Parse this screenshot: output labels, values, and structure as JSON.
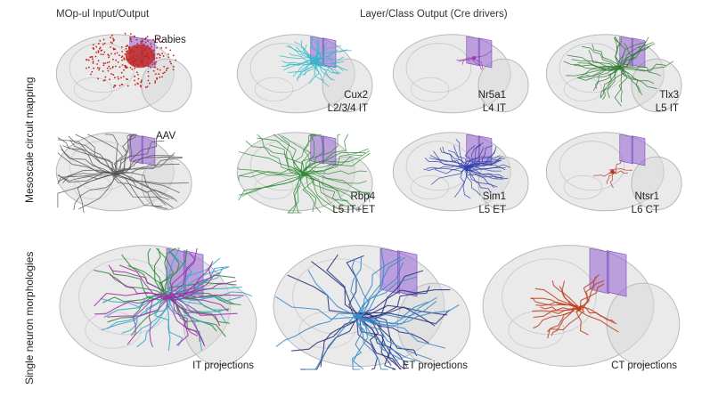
{
  "headers": {
    "input_output": "MOp-ul Input/Output",
    "layer_class": "Layer/Class Output (Cre drivers)"
  },
  "row_labels": {
    "mesoscale": "Mesoscale circuit mapping",
    "single_neuron": "Single neuron morphologies"
  },
  "panels": {
    "rabies": {
      "label": "Rabies",
      "color": "#c0231a"
    },
    "aav": {
      "label": "AAV",
      "color": "#555555"
    },
    "cux2": {
      "line": "Cux2",
      "cls": "L2/3/4 IT",
      "color": "#2fb8c8"
    },
    "nr5a1": {
      "line": "Nr5a1",
      "cls": "L4 IT",
      "color": "#9b3fb0"
    },
    "tlx3": {
      "line": "Tlx3",
      "cls": "L5 IT",
      "color": "#2f7a33"
    },
    "rbp4": {
      "line": "Rbp4",
      "cls": "L5 IT+ET",
      "color": "#2f8a33"
    },
    "sim1": {
      "line": "Sim1",
      "cls": "L5 ET",
      "color": "#3040a8"
    },
    "ntsr1": {
      "line": "Ntsr1",
      "cls": "L6 CT",
      "color": "#b83320"
    },
    "it": {
      "label": "IT projections",
      "colors": [
        "#2f8a3a",
        "#3aa6c8",
        "#a030a8"
      ]
    },
    "et": {
      "label": "ET projections",
      "colors": [
        "#26307a",
        "#3a8ac8"
      ]
    },
    "ct": {
      "label": "CT projections",
      "colors": [
        "#c0401e"
      ]
    }
  },
  "colors": {
    "brain_fill": "#d9d9db",
    "brain_edge": "#b9b9bd",
    "plane": "#9b6bd2"
  }
}
